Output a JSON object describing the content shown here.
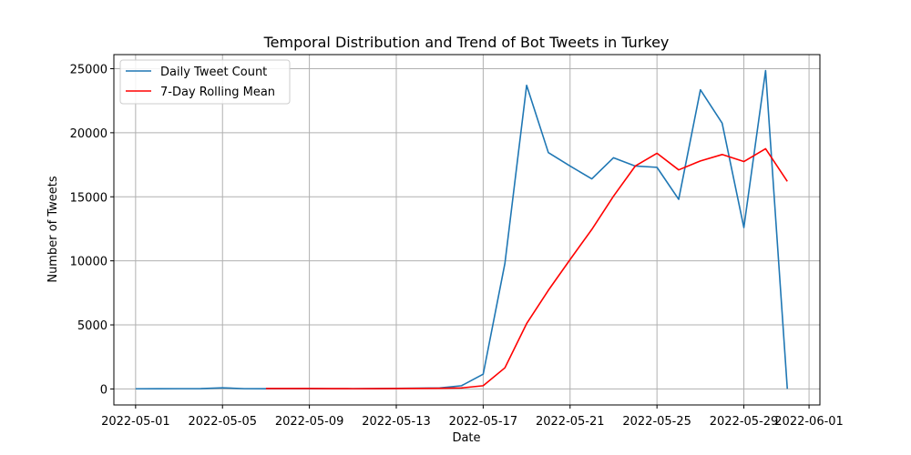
{
  "chart_data": {
    "type": "line",
    "title": "Temporal Distribution and Trend of Bot Tweets in Turkey",
    "xlabel": "Date",
    "ylabel": "Number of Tweets",
    "xlim": [
      "2022-04-30T00:00",
      "2022-06-01T12:00"
    ],
    "ylim": [
      -1250,
      26100
    ],
    "x_ticks": [
      "2022-05-01",
      "2022-05-05",
      "2022-05-09",
      "2022-05-13",
      "2022-05-17",
      "2022-05-21",
      "2022-05-25",
      "2022-05-29",
      "2022-06-01"
    ],
    "y_ticks": [
      0,
      5000,
      10000,
      15000,
      20000,
      25000
    ],
    "grid": true,
    "legend_position": "top-left",
    "series": [
      {
        "name": "Daily Tweet Count",
        "color": "#1f77b4",
        "points": [
          [
            "2022-05-01",
            10
          ],
          [
            "2022-05-02",
            15
          ],
          [
            "2022-05-03",
            20
          ],
          [
            "2022-05-04",
            25
          ],
          [
            "2022-05-05",
            90
          ],
          [
            "2022-05-06",
            20
          ],
          [
            "2022-05-07",
            15
          ],
          [
            "2022-05-08",
            20
          ],
          [
            "2022-05-09",
            25
          ],
          [
            "2022-05-10",
            20
          ],
          [
            "2022-05-11",
            20
          ],
          [
            "2022-05-12",
            25
          ],
          [
            "2022-05-13",
            40
          ],
          [
            "2022-05-14",
            60
          ],
          [
            "2022-05-15",
            80
          ],
          [
            "2022-05-16",
            250
          ],
          [
            "2022-05-17",
            1150
          ],
          [
            "2022-05-18",
            9800
          ],
          [
            "2022-05-19",
            23700
          ],
          [
            "2022-05-20",
            18450
          ],
          [
            "2022-05-21",
            17400
          ],
          [
            "2022-05-22",
            16400
          ],
          [
            "2022-05-23",
            18050
          ],
          [
            "2022-05-24",
            17400
          ],
          [
            "2022-05-25",
            17300
          ],
          [
            "2022-05-26",
            14800
          ],
          [
            "2022-05-27",
            23350
          ],
          [
            "2022-05-28",
            20750
          ],
          [
            "2022-05-29",
            12600
          ],
          [
            "2022-05-30",
            24850
          ],
          [
            "2022-05-31",
            10
          ]
        ]
      },
      {
        "name": "7-Day Rolling Mean",
        "color": "#ff0000",
        "points": [
          [
            "2022-05-07",
            30
          ],
          [
            "2022-05-08",
            30
          ],
          [
            "2022-05-09",
            30
          ],
          [
            "2022-05-10",
            25
          ],
          [
            "2022-05-11",
            20
          ],
          [
            "2022-05-12",
            25
          ],
          [
            "2022-05-13",
            30
          ],
          [
            "2022-05-14",
            40
          ],
          [
            "2022-05-15",
            50
          ],
          [
            "2022-05-16",
            80
          ],
          [
            "2022-05-17",
            250
          ],
          [
            "2022-05-18",
            1650
          ],
          [
            "2022-05-19",
            5100
          ],
          [
            "2022-05-20",
            7700
          ],
          [
            "2022-05-21",
            10100
          ],
          [
            "2022-05-22",
            12450
          ],
          [
            "2022-05-23",
            15050
          ],
          [
            "2022-05-24",
            17400
          ],
          [
            "2022-05-25",
            18400
          ],
          [
            "2022-05-26",
            17100
          ],
          [
            "2022-05-27",
            17800
          ],
          [
            "2022-05-28",
            18300
          ],
          [
            "2022-05-29",
            17750
          ],
          [
            "2022-05-30",
            18750
          ],
          [
            "2022-05-31",
            16200
          ]
        ]
      }
    ]
  }
}
